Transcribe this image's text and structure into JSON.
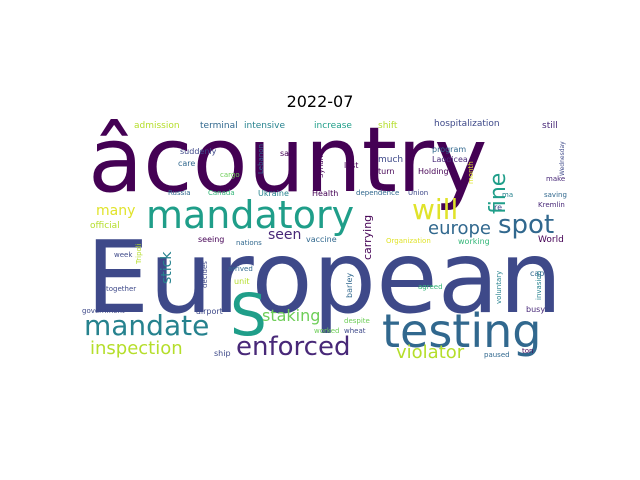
{
  "title": "2022-07",
  "words": {
    "european": "European",
    "country": "âcountry",
    "mandatory": "mandatory",
    "testing": "testing",
    "s": "S",
    "mandate": "mandate",
    "enforced": "enforced",
    "will": "will",
    "spot": "spot",
    "europe": "europe",
    "fine": "fine",
    "inspection": "inspection",
    "violator": "violator",
    "staking": "staking",
    "seen": "seen",
    "many": "many",
    "stick": "stick",
    "carrying": "carrying",
    "admission": "admission",
    "terminal": "terminal",
    "intensive": "intensive",
    "increase": "increase",
    "shift": "shift",
    "hospitalization": "hospitalization",
    "still": "still",
    "suddenly": "suddenly",
    "lebanon": "Lebanon",
    "said": "said",
    "syrian": "Syrian",
    "last": "last",
    "program": "program",
    "laodicea": "Laodicea",
    "much": "much",
    "turn": "turn",
    "holding": "Holding",
    "care": "care",
    "cargo": "cargo",
    "russia": "Russia",
    "canada": "Canada",
    "ukraine": "Ukraine",
    "health": "Health",
    "dependence": "dependence",
    "union": "Union",
    "re": "re",
    "make": "make",
    "wednesday": "Wednesday",
    "saving": "saving",
    "kremlin": "Kremlin",
    "official": "official",
    "seeing": "seeing",
    "nations": "nations",
    "vaccine": "vaccine",
    "organization": "Organization",
    "working": "working",
    "world": "World",
    "tripoli": "Tripoli",
    "week": "week",
    "decides": "decides",
    "arrived": "arrived",
    "unit": "unit",
    "barley": "barley",
    "agreed": "agreed",
    "voluntary": "voluntary",
    "cap": "cap",
    "invasion": "invasion",
    "together": "together",
    "government": "government",
    "airport": "airport",
    "worked": "worked",
    "wheat": "wheat",
    "despite": "despite",
    "ship": "ship",
    "paused": "paused",
    "ton": "ton",
    "busy": "busy",
    "ma": "ma",
    "month": "month"
  },
  "colors": {
    "dark_purple": "#440154",
    "purple": "#482878",
    "indigo": "#3e4989",
    "blue": "#31688e",
    "teal_blue": "#26828e",
    "teal": "#1f9e89",
    "green": "#35b779",
    "light_green": "#6ece58",
    "yellow_green": "#b5de2b",
    "yellow": "#e0e32a"
  }
}
